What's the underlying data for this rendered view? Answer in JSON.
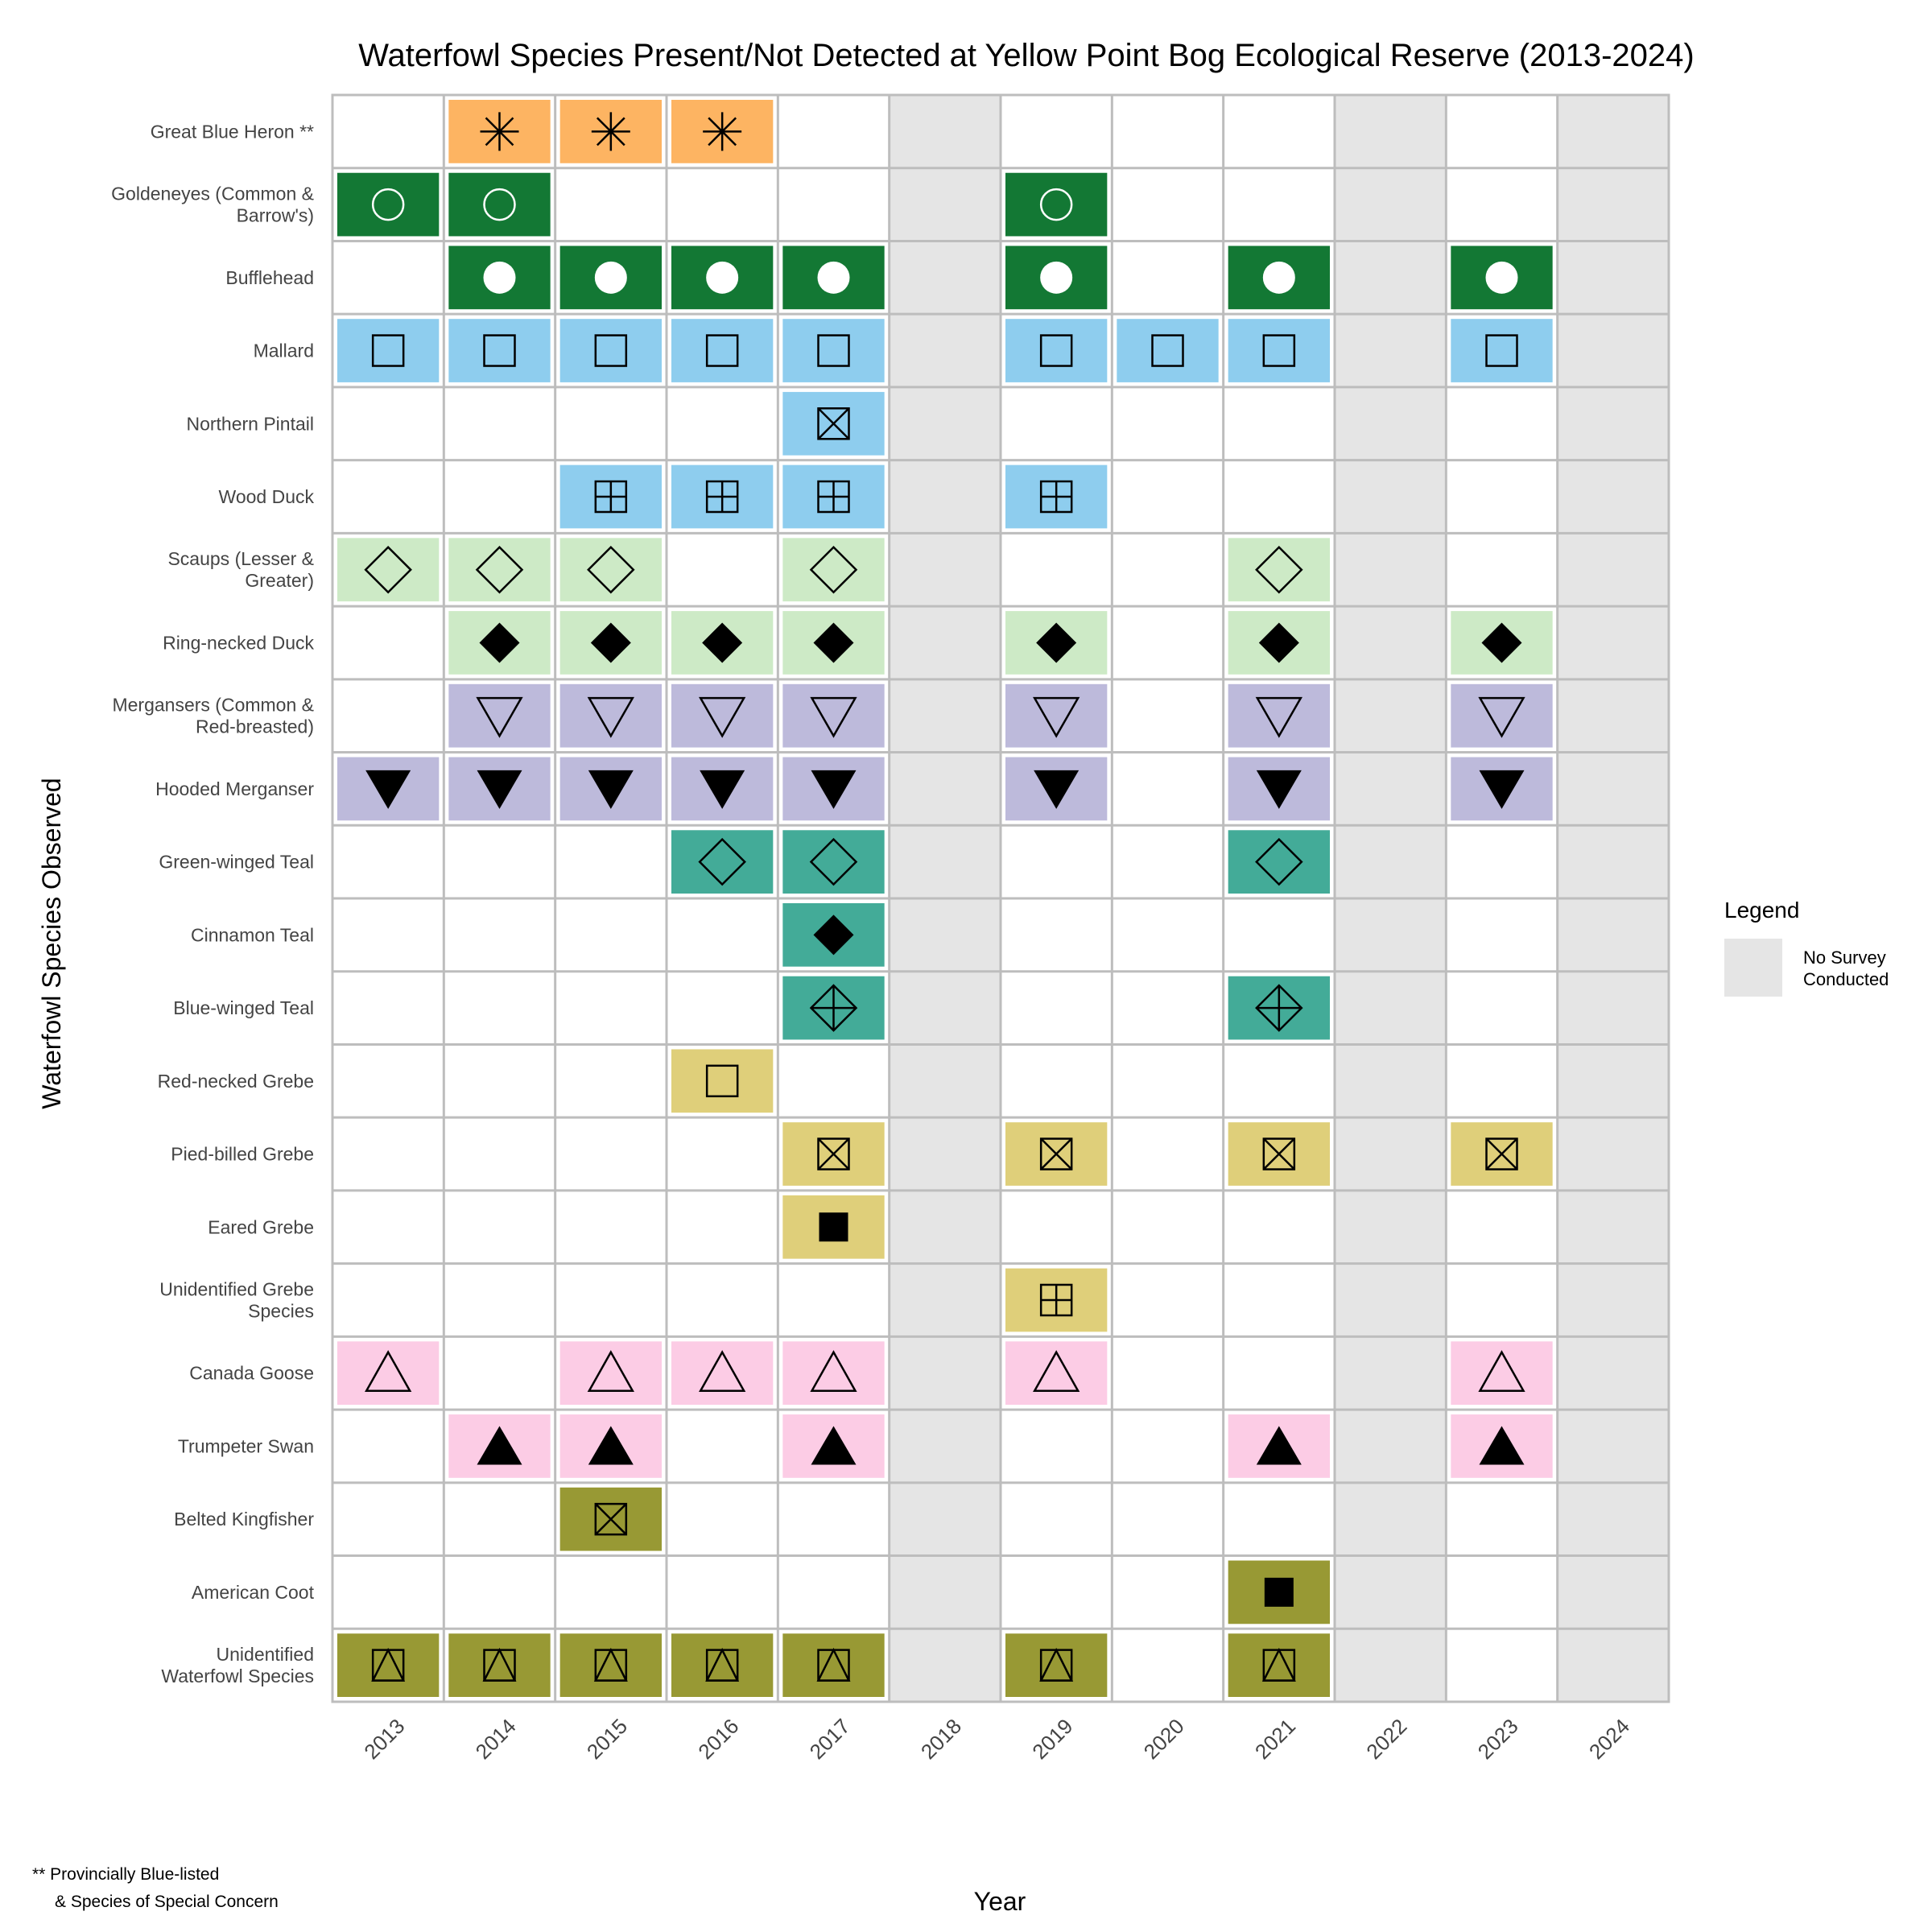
{
  "chart_data": {
    "type": "heatmap",
    "title": "Waterfowl Species Present/Not Detected at Yellow Point Bog Ecological Reserve (2013-2024)",
    "xlabel": "Year",
    "ylabel": "Waterfowl Species Observed",
    "years": [
      "2013",
      "2014",
      "2015",
      "2016",
      "2017",
      "2018",
      "2019",
      "2020",
      "2021",
      "2022",
      "2023",
      "2024"
    ],
    "no_survey_years": [
      "2018",
      "2022",
      "2024"
    ],
    "legend": {
      "title": "Legend",
      "entry": "No Survey Conducted",
      "entry_lines": [
        "No Survey",
        "Conducted"
      ],
      "color": "#e5e5e5",
      "placement": "right"
    },
    "footnote": [
      "** Provincially Blue-listed",
      "& Species of Special Concern"
    ],
    "species": [
      {
        "name": "Great Blue Heron **",
        "lines": [
          "Great Blue Heron **"
        ],
        "color": "#fdb462",
        "symbol": "asterisk",
        "present": [
          "2014",
          "2015",
          "2016"
        ]
      },
      {
        "name": "Goldeneyes (Common & Barrow's)",
        "lines": [
          "Goldeneyes (Common &",
          "Barrow's)"
        ],
        "color": "#137834",
        "symbol": "open-circle-white",
        "present": [
          "2013",
          "2014",
          "2019"
        ]
      },
      {
        "name": "Bufflehead",
        "lines": [
          "Bufflehead"
        ],
        "color": "#137834",
        "symbol": "filled-circle-white",
        "present": [
          "2014",
          "2015",
          "2016",
          "2017",
          "2019",
          "2021",
          "2023"
        ]
      },
      {
        "name": "Mallard",
        "lines": [
          "Mallard"
        ],
        "color": "#8ecdee",
        "symbol": "open-square",
        "present": [
          "2013",
          "2014",
          "2015",
          "2016",
          "2017",
          "2019",
          "2020",
          "2021",
          "2023"
        ]
      },
      {
        "name": "Northern Pintail",
        "lines": [
          "Northern Pintail"
        ],
        "color": "#8ecdee",
        "symbol": "square-x",
        "present": [
          "2017"
        ]
      },
      {
        "name": "Wood Duck",
        "lines": [
          "Wood Duck"
        ],
        "color": "#8ecdee",
        "symbol": "square-plus",
        "present": [
          "2015",
          "2016",
          "2017",
          "2019"
        ]
      },
      {
        "name": "Scaups (Lesser & Greater)",
        "lines": [
          "Scaups (Lesser &",
          "Greater)"
        ],
        "color": "#cdeac6",
        "symbol": "open-diamond",
        "present": [
          "2013",
          "2014",
          "2015",
          "2017",
          "2021"
        ]
      },
      {
        "name": "Ring-necked Duck",
        "lines": [
          "Ring-necked Duck"
        ],
        "color": "#cdeac6",
        "symbol": "filled-diamond",
        "present": [
          "2014",
          "2015",
          "2016",
          "2017",
          "2019",
          "2021",
          "2023"
        ]
      },
      {
        "name": "Mergansers (Common & Red-breasted)",
        "lines": [
          "Mergansers (Common &",
          "Red-breasted)"
        ],
        "color": "#bdbadb",
        "symbol": "open-triangle-down",
        "present": [
          "2014",
          "2015",
          "2016",
          "2017",
          "2019",
          "2021",
          "2023"
        ]
      },
      {
        "name": "Hooded Merganser",
        "lines": [
          "Hooded Merganser"
        ],
        "color": "#bdbadb",
        "symbol": "filled-triangle-down",
        "present": [
          "2013",
          "2014",
          "2015",
          "2016",
          "2017",
          "2019",
          "2021",
          "2023"
        ]
      },
      {
        "name": "Green-winged Teal",
        "lines": [
          "Green-winged Teal"
        ],
        "color": "#43ab98",
        "symbol": "open-diamond",
        "present": [
          "2016",
          "2017",
          "2021"
        ]
      },
      {
        "name": "Cinnamon Teal",
        "lines": [
          "Cinnamon Teal"
        ],
        "color": "#43ab98",
        "symbol": "filled-diamond",
        "present": [
          "2017"
        ]
      },
      {
        "name": "Blue-winged Teal",
        "lines": [
          "Blue-winged Teal"
        ],
        "color": "#43ab98",
        "symbol": "diamond-plus",
        "present": [
          "2017",
          "2021"
        ]
      },
      {
        "name": "Red-necked Grebe",
        "lines": [
          "Red-necked Grebe"
        ],
        "color": "#dfcf7a",
        "symbol": "open-square",
        "present": [
          "2016"
        ]
      },
      {
        "name": "Pied-billed Grebe",
        "lines": [
          "Pied-billed Grebe"
        ],
        "color": "#dfcf7a",
        "symbol": "square-x",
        "present": [
          "2017",
          "2019",
          "2021",
          "2023"
        ]
      },
      {
        "name": "Eared Grebe",
        "lines": [
          "Eared Grebe"
        ],
        "color": "#dfcf7a",
        "symbol": "filled-square",
        "present": [
          "2017"
        ]
      },
      {
        "name": "Unidentified Grebe Species",
        "lines": [
          "Unidentified Grebe",
          "Species"
        ],
        "color": "#dfcf7a",
        "symbol": "square-plus",
        "present": [
          "2019"
        ]
      },
      {
        "name": "Canada Goose",
        "lines": [
          "Canada Goose"
        ],
        "color": "#fccce5",
        "symbol": "open-triangle-up",
        "present": [
          "2013",
          "2015",
          "2016",
          "2017",
          "2019",
          "2023"
        ]
      },
      {
        "name": "Trumpeter Swan",
        "lines": [
          "Trumpeter Swan"
        ],
        "color": "#fccce5",
        "symbol": "filled-triangle-up",
        "present": [
          "2014",
          "2015",
          "2017",
          "2021",
          "2023"
        ]
      },
      {
        "name": "Belted Kingfisher",
        "lines": [
          "Belted Kingfisher"
        ],
        "color": "#989934",
        "symbol": "square-x",
        "present": [
          "2015"
        ]
      },
      {
        "name": "American Coot",
        "lines": [
          "American Coot"
        ],
        "color": "#989934",
        "symbol": "filled-square",
        "present": [
          "2021"
        ]
      },
      {
        "name": "Unidentified Waterfowl Species",
        "lines": [
          "Unidentified",
          "Waterfowl Species"
        ],
        "color": "#989934",
        "symbol": "square-triangle",
        "present": [
          "2013",
          "2014",
          "2015",
          "2016",
          "2017",
          "2019",
          "2021"
        ]
      }
    ]
  }
}
